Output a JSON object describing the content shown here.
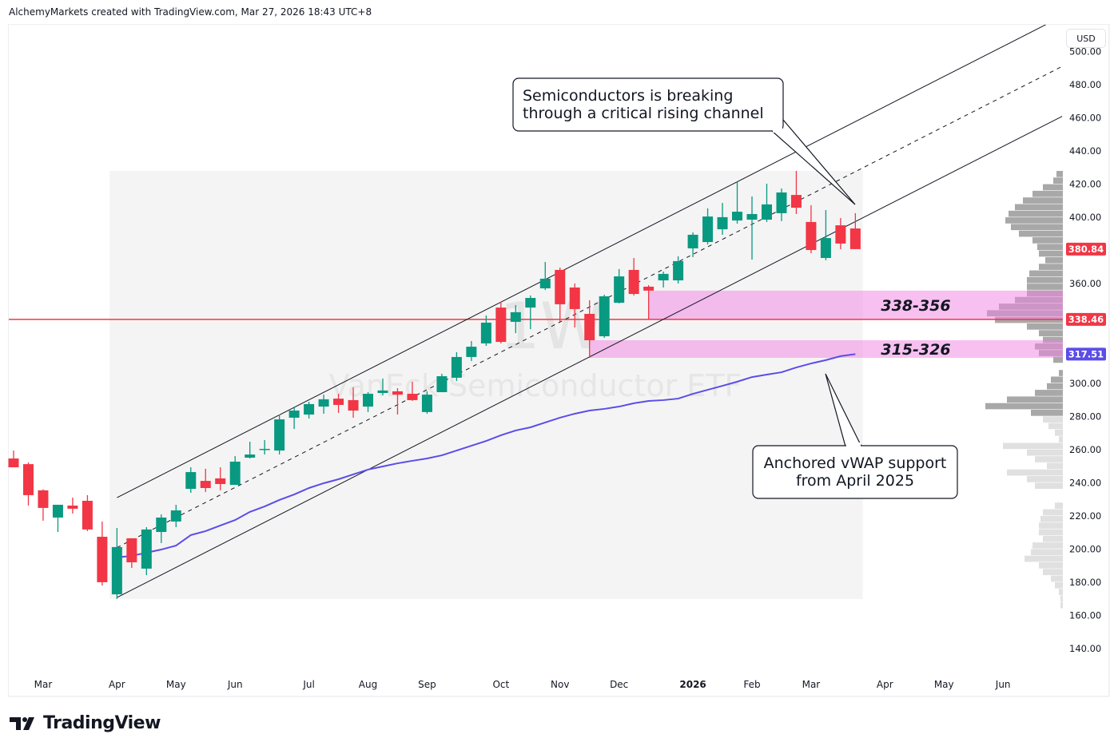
{
  "header": {
    "attribution": "AlchemyMarkets created with TradingView.com, Mar 27, 2026 18:43 UTC+8"
  },
  "currency_button": "USD",
  "branding": {
    "logo_text": "TradingView"
  },
  "colors": {
    "up": "#089981",
    "down": "#f23645",
    "vwap": "#5b4de8",
    "zone": "#f7bbef",
    "hline": "#f23645",
    "profile_dark": "#a8a8a8",
    "profile_light": "#e0e0e0"
  },
  "chart_data": {
    "type": "candlestick",
    "symbol_watermark": "VanEck Semiconductor ETF",
    "interval_watermark": "1W",
    "ylim": [
      130,
      510
    ],
    "y_ticks": [
      140,
      160,
      180,
      200,
      220,
      240,
      260,
      280,
      300,
      320,
      340,
      360,
      380,
      400,
      420,
      440,
      460,
      480,
      500
    ],
    "y_ticks_shown": [
      "140.00",
      "160.00",
      "180.00",
      "200.00",
      "220.00",
      "240.00",
      "260.00",
      "280.00",
      "300.00",
      "360.00",
      "400.00",
      "420.00",
      "440.00",
      "460.00",
      "480.00"
    ],
    "x_labels": [
      {
        "label": "Mar",
        "bar": 2
      },
      {
        "label": "Apr",
        "bar": 7
      },
      {
        "label": "May",
        "bar": 11
      },
      {
        "label": "Jun",
        "bar": 15
      },
      {
        "label": "Jul",
        "bar": 20
      },
      {
        "label": "Aug",
        "bar": 24
      },
      {
        "label": "Sep",
        "bar": 28
      },
      {
        "label": "Oct",
        "bar": 33
      },
      {
        "label": "Nov",
        "bar": 37
      },
      {
        "label": "Dec",
        "bar": 41
      },
      {
        "label": "2026",
        "bar": 46,
        "bold": true
      },
      {
        "label": "Feb",
        "bar": 50
      },
      {
        "label": "Mar",
        "bar": 54
      },
      {
        "label": "Apr",
        "bar": 59
      },
      {
        "label": "May",
        "bar": 63
      },
      {
        "label": "Jun",
        "bar": 67
      }
    ],
    "ohlc": [
      [
        254.6,
        259.4,
        249.3,
        249.3
      ],
      [
        251.2,
        252.2,
        226.2,
        232.5
      ],
      [
        235.4,
        236.0,
        217.1,
        224.8
      ],
      [
        219.0,
        226.7,
        210.3,
        226.7
      ],
      [
        226.2,
        231.0,
        221.4,
        224.3
      ],
      [
        229.1,
        232.5,
        210.8,
        211.8
      ],
      [
        207.4,
        216.6,
        178.0,
        180.0
      ],
      [
        172.7,
        212.7,
        169.9,
        201.2
      ],
      [
        206.5,
        206.5,
        188.6,
        192.0
      ],
      [
        188.2,
        213.2,
        184.3,
        211.8
      ],
      [
        210.3,
        220.9,
        203.6,
        219.0
      ],
      [
        216.6,
        226.7,
        213.2,
        223.3
      ],
      [
        236.3,
        249.3,
        233.9,
        246.4
      ],
      [
        241.1,
        248.4,
        234.4,
        236.8
      ],
      [
        242.6,
        249.3,
        235.4,
        239.2
      ],
      [
        238.7,
        256.1,
        238.7,
        252.7
      ],
      [
        255.1,
        264.7,
        254.6,
        257.0
      ],
      [
        259.9,
        265.7,
        257.0,
        260.4
      ],
      [
        259.4,
        281.1,
        257.0,
        278.2
      ],
      [
        279.2,
        285.9,
        272.4,
        283.5
      ],
      [
        281.1,
        288.8,
        278.7,
        287.4
      ],
      [
        285.9,
        293.1,
        281.6,
        290.3
      ],
      [
        290.7,
        293.6,
        282.1,
        286.9
      ],
      [
        289.8,
        297.5,
        279.2,
        283.5
      ],
      [
        285.9,
        294.6,
        282.6,
        293.6
      ],
      [
        294.1,
        302.8,
        292.7,
        295.6
      ],
      [
        295.1,
        297.0,
        281.1,
        293.1
      ],
      [
        293.6,
        300.9,
        289.3,
        289.8
      ],
      [
        282.6,
        295.1,
        281.6,
        293.1
      ],
      [
        294.6,
        305.7,
        294.6,
        304.2
      ],
      [
        303.3,
        318.7,
        301.3,
        315.8
      ],
      [
        315.8,
        325.4,
        313.4,
        322.0
      ],
      [
        324.0,
        340.8,
        322.5,
        336.5
      ],
      [
        345.6,
        349.0,
        324.0,
        324.9
      ],
      [
        337.0,
        347.1,
        330.2,
        342.8
      ],
      [
        345.6,
        352.9,
        332.6,
        351.4
      ],
      [
        357.2,
        373.1,
        356.2,
        363.0
      ],
      [
        368.3,
        369.7,
        337.0,
        347.6
      ],
      [
        357.7,
        360.1,
        333.6,
        344.7
      ],
      [
        341.8,
        350.0,
        315.3,
        325.9
      ],
      [
        328.3,
        353.4,
        327.3,
        352.4
      ],
      [
        348.5,
        368.8,
        348.1,
        364.4
      ],
      [
        368.3,
        375.5,
        352.9,
        353.8
      ],
      [
        358.2,
        359.1,
        338.4,
        355.8
      ],
      [
        362.0,
        367.3,
        357.7,
        365.9
      ],
      [
        362.0,
        376.5,
        360.1,
        373.6
      ],
      [
        381.3,
        390.9,
        376.0,
        389.5
      ],
      [
        385.1,
        405.4,
        383.7,
        400.5
      ],
      [
        392.8,
        408.7,
        389.5,
        400.1
      ],
      [
        398.1,
        421.4,
        396.2,
        403.4
      ],
      [
        398.6,
        412.6,
        374.5,
        402.0
      ],
      [
        398.6,
        420.3,
        397.2,
        407.8
      ],
      [
        402.5,
        417.4,
        397.7,
        415.0
      ],
      [
        413.5,
        428.0,
        402.0,
        405.8
      ],
      [
        397.2,
        407.3,
        378.4,
        380.3
      ],
      [
        375.5,
        404.4,
        374.1,
        387.5
      ],
      [
        395.2,
        399.6,
        380.8,
        384.2
      ],
      [
        393.3,
        402.5,
        380.8,
        380.84
      ]
    ],
    "vwap": {
      "start_bar": 7,
      "values": [
        194.9,
        195.9,
        197.8,
        199.7,
        202.1,
        208.4,
        210.8,
        214.2,
        217.5,
        222.4,
        225.7,
        229.6,
        232.9,
        236.8,
        239.7,
        242.1,
        245.0,
        247.9,
        249.8,
        251.7,
        253.2,
        254.6,
        256.5,
        259.4,
        262.3,
        265.2,
        268.6,
        271.5,
        273.4,
        276.3,
        279.2,
        281.6,
        283.5,
        284.5,
        285.9,
        287.9,
        289.3,
        289.8,
        290.7,
        293.6,
        296.0,
        298.4,
        300.9,
        303.7,
        305.2,
        306.6,
        309.5,
        311.9,
        313.9,
        316.3,
        317.51
      ]
    },
    "channel": {
      "upper": [
        [
          7,
          231.0
        ],
        [
          71,
          521.2
        ]
      ],
      "middle": [
        [
          7,
          200.9
        ],
        [
          71,
          491.0
        ]
      ],
      "lower": [
        [
          7,
          170.8
        ],
        [
          71,
          460.9
        ]
      ]
    },
    "range_box": {
      "bar_from": 6.5,
      "bar_to": 57.5,
      "price_low": 169.9,
      "price_high": 428.0
    },
    "zones": [
      {
        "label": "338-356",
        "low": 338.4,
        "high": 355.8,
        "start_bar": 43
      },
      {
        "label": "315-326",
        "low": 315.3,
        "high": 325.9,
        "start_bar": 39
      }
    ],
    "horizontal_line": 338.46,
    "price_labels": [
      {
        "text": "380.84",
        "price": 380.84,
        "color": "#f23645"
      },
      {
        "text": "338.46",
        "price": 338.46,
        "color": "#f23645"
      },
      {
        "text": "317.51",
        "price": 317.51,
        "color": "#5b4de8"
      }
    ],
    "annotations": [
      {
        "lines": [
          "Semiconductors is breaking",
          "through a critical rising channel"
        ]
      },
      {
        "lines": [
          "Anchored vWAP support",
          "from April 2025"
        ]
      }
    ],
    "volume_profile": {
      "bin_size": 4,
      "value_area_low": 280,
      "bins": [
        [
          166,
          3
        ],
        [
          170,
          3
        ],
        [
          174,
          5
        ],
        [
          178,
          10
        ],
        [
          182,
          15
        ],
        [
          186,
          25
        ],
        [
          190,
          30
        ],
        [
          194,
          48
        ],
        [
          198,
          40
        ],
        [
          202,
          38
        ],
        [
          206,
          25
        ],
        [
          210,
          30
        ],
        [
          214,
          30
        ],
        [
          218,
          28
        ],
        [
          222,
          25
        ],
        [
          226,
          10
        ],
        [
          230,
          0
        ],
        [
          234,
          0
        ],
        [
          238,
          35
        ],
        [
          242,
          45
        ],
        [
          246,
          70
        ],
        [
          250,
          20
        ],
        [
          254,
          35
        ],
        [
          258,
          45
        ],
        [
          262,
          75
        ],
        [
          266,
          5
        ],
        [
          270,
          10
        ],
        [
          274,
          18
        ],
        [
          278,
          25
        ],
        [
          282,
          40
        ],
        [
          286,
          97
        ],
        [
          290,
          70
        ],
        [
          294,
          35
        ],
        [
          298,
          20
        ],
        [
          302,
          15
        ],
        [
          306,
          5
        ],
        [
          310,
          0
        ],
        [
          314,
          12
        ],
        [
          318,
          30
        ],
        [
          322,
          35
        ],
        [
          326,
          25
        ],
        [
          330,
          30
        ],
        [
          334,
          45
        ],
        [
          338,
          85
        ],
        [
          342,
          95
        ],
        [
          346,
          80
        ],
        [
          350,
          60
        ],
        [
          354,
          45
        ],
        [
          358,
          45
        ],
        [
          362,
          45
        ],
        [
          366,
          42
        ],
        [
          370,
          30
        ],
        [
          374,
          22
        ],
        [
          378,
          30
        ],
        [
          382,
          32
        ],
        [
          386,
          38
        ],
        [
          390,
          55
        ],
        [
          394,
          65
        ],
        [
          398,
          72
        ],
        [
          402,
          68
        ],
        [
          406,
          60
        ],
        [
          410,
          50
        ],
        [
          414,
          38
        ],
        [
          418,
          25
        ],
        [
          422,
          12
        ],
        [
          426,
          8
        ]
      ]
    }
  }
}
